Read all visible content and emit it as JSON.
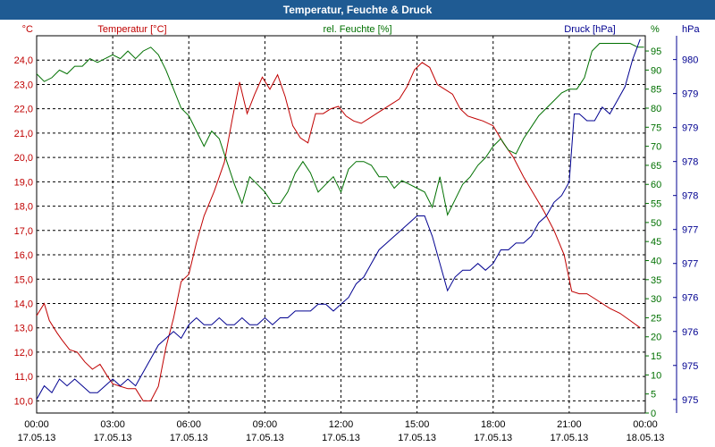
{
  "window": {
    "title": "Temperatur, Feuchte & Druck"
  },
  "chart_data": {
    "type": "line",
    "title": "Temperatur, Feuchte & Druck",
    "grid": true,
    "colors": {
      "temperature": "#c00000",
      "humidity": "#007000",
      "pressure": "#000090",
      "title_bar": "#1f5b93",
      "grid": "#000000"
    },
    "x_ticks": [
      {
        "hour": 0,
        "time": "00:00",
        "date": "17.05.13"
      },
      {
        "hour": 3,
        "time": "03:00",
        "date": "17.05.13"
      },
      {
        "hour": 6,
        "time": "06:00",
        "date": "17.05.13"
      },
      {
        "hour": 9,
        "time": "09:00",
        "date": "17.05.13"
      },
      {
        "hour": 12,
        "time": "12:00",
        "date": "17.05.13"
      },
      {
        "hour": 15,
        "time": "15:00",
        "date": "17.05.13"
      },
      {
        "hour": 18,
        "time": "18:00",
        "date": "17.05.13"
      },
      {
        "hour": 21,
        "time": "21:00",
        "date": "17.05.13"
      },
      {
        "hour": 24,
        "time": "00:00",
        "date": "18.05.13"
      }
    ],
    "xlim": [
      0,
      24
    ],
    "axes": {
      "temperature": {
        "label": "Temperatur [°C]",
        "unit": "°C",
        "ylim": [
          9.5,
          25.0
        ],
        "ticks": [
          10,
          11,
          12,
          13,
          14,
          15,
          16,
          17,
          18,
          19,
          20,
          21,
          22,
          23,
          24
        ],
        "tick_labels": [
          "10,0",
          "11,0",
          "12,0",
          "13,0",
          "14,0",
          "15,0",
          "16,0",
          "17,0",
          "18,0",
          "19,0",
          "20,0",
          "21,0",
          "22,0",
          "23,0",
          "24,0"
        ]
      },
      "humidity": {
        "label": "rel. Feuchte [%]",
        "unit": "%",
        "ylim": [
          0,
          99
        ],
        "ticks": [
          0,
          5,
          10,
          15,
          20,
          25,
          30,
          35,
          40,
          45,
          50,
          55,
          60,
          65,
          70,
          75,
          80,
          85,
          90,
          95
        ],
        "tick_labels": [
          "0",
          "5",
          "10",
          "15",
          "20",
          "25",
          "30",
          "35",
          "40",
          "45",
          "50",
          "55",
          "60",
          "65",
          "70",
          "75",
          "80",
          "85",
          "90",
          "95"
        ]
      },
      "pressure": {
        "label": "Druck [hPa]",
        "unit": "hPa",
        "ylim": [
          974.8,
          980.35
        ],
        "tick_values": [
          975.0,
          975.5,
          976.0,
          976.5,
          977.0,
          977.5,
          978.0,
          978.5,
          979.0,
          979.5,
          980.0
        ],
        "tick_labels": [
          "975",
          "975",
          "976",
          "976",
          "977",
          "977",
          "978",
          "978",
          "979",
          "979",
          "980"
        ]
      }
    },
    "series": [
      {
        "name": "Temperatur [°C]",
        "axis": "temperature",
        "x": [
          0,
          0.3,
          0.5,
          0.8,
          1.0,
          1.3,
          1.6,
          1.9,
          2.2,
          2.5,
          2.8,
          3.0,
          3.3,
          3.6,
          3.9,
          4.2,
          4.5,
          4.8,
          5.1,
          5.4,
          5.7,
          6.0,
          6.3,
          6.6,
          7.0,
          7.4,
          7.7,
          8.0,
          8.3,
          8.6,
          8.9,
          9.2,
          9.5,
          9.8,
          10.1,
          10.4,
          10.7,
          11.0,
          11.3,
          11.6,
          11.9,
          12.2,
          12.5,
          12.8,
          13.1,
          13.4,
          13.7,
          14.0,
          14.3,
          14.6,
          14.9,
          15.2,
          15.5,
          15.8,
          16.1,
          16.4,
          16.7,
          17.0,
          17.3,
          17.6,
          18.0,
          18.4,
          18.8,
          19.2,
          19.6,
          20.0,
          20.4,
          20.8,
          21.1,
          21.4,
          21.7,
          22.0,
          22.3,
          22.6,
          23.0,
          23.4,
          23.8
        ],
        "y": [
          13.5,
          14.0,
          13.3,
          12.8,
          12.5,
          12.1,
          12.0,
          11.6,
          11.3,
          11.5,
          11.0,
          10.7,
          10.6,
          10.5,
          10.5,
          10.0,
          10.0,
          10.6,
          12.2,
          13.4,
          14.9,
          15.2,
          16.5,
          17.6,
          18.6,
          19.8,
          21.5,
          23.1,
          21.8,
          22.6,
          23.3,
          22.8,
          23.4,
          22.5,
          21.3,
          20.8,
          20.6,
          21.8,
          21.8,
          22.0,
          22.1,
          21.7,
          21.5,
          21.4,
          21.6,
          21.8,
          22.0,
          22.2,
          22.4,
          22.9,
          23.6,
          23.9,
          23.7,
          23.0,
          22.8,
          22.6,
          22.0,
          21.7,
          21.6,
          21.5,
          21.3,
          20.6,
          20.0,
          19.2,
          18.5,
          17.8,
          17.0,
          16.0,
          14.5,
          14.4,
          14.4,
          14.2,
          14.0,
          13.8,
          13.6,
          13.3,
          13.0
        ]
      },
      {
        "name": "rel. Feuchte [%]",
        "axis": "humidity",
        "x": [
          0,
          0.3,
          0.6,
          0.9,
          1.2,
          1.5,
          1.8,
          2.1,
          2.4,
          2.7,
          3.0,
          3.3,
          3.6,
          3.9,
          4.2,
          4.5,
          4.8,
          5.1,
          5.4,
          5.7,
          6.0,
          6.3,
          6.6,
          6.9,
          7.2,
          7.5,
          7.8,
          8.1,
          8.4,
          8.7,
          9.0,
          9.3,
          9.6,
          9.9,
          10.2,
          10.5,
          10.8,
          11.1,
          11.4,
          11.7,
          12.0,
          12.3,
          12.6,
          12.9,
          13.2,
          13.5,
          13.8,
          14.1,
          14.4,
          14.7,
          15.0,
          15.3,
          15.6,
          15.9,
          16.2,
          16.5,
          16.8,
          17.1,
          17.4,
          17.7,
          18.0,
          18.3,
          18.6,
          18.9,
          19.2,
          19.5,
          19.8,
          20.1,
          20.4,
          20.7,
          21.0,
          21.3,
          21.6,
          21.9,
          22.2,
          22.5,
          22.8,
          23.1,
          23.4,
          23.7,
          23.95
        ],
        "y": [
          89,
          87,
          88,
          90,
          89,
          91,
          91,
          93,
          92,
          93,
          94,
          93,
          95,
          93,
          95,
          96,
          94,
          90,
          85,
          80,
          78,
          74,
          70,
          74,
          72,
          66,
          60,
          55,
          62,
          60,
          58,
          55,
          55,
          58,
          63,
          66,
          63,
          58,
          60,
          62,
          58,
          64,
          66,
          66,
          65,
          62,
          62,
          59,
          61,
          60,
          59,
          58,
          54,
          62,
          52,
          56,
          60,
          62,
          65,
          67,
          70,
          72,
          69,
          68,
          72,
          75,
          78,
          80,
          82,
          84,
          85,
          85,
          88,
          95,
          97,
          97,
          97,
          97,
          97,
          96,
          96
        ]
      },
      {
        "name": "Druck [hPa]",
        "axis": "pressure",
        "x": [
          0,
          0.3,
          0.6,
          0.9,
          1.2,
          1.5,
          1.8,
          2.1,
          2.4,
          2.7,
          3.0,
          3.3,
          3.6,
          3.9,
          4.2,
          4.5,
          4.8,
          5.1,
          5.4,
          5.7,
          6.0,
          6.3,
          6.6,
          6.9,
          7.2,
          7.5,
          7.8,
          8.1,
          8.4,
          8.7,
          9.0,
          9.3,
          9.6,
          9.9,
          10.2,
          10.5,
          10.8,
          11.1,
          11.4,
          11.7,
          12.0,
          12.3,
          12.6,
          12.9,
          13.2,
          13.5,
          13.8,
          14.1,
          14.4,
          14.7,
          15.0,
          15.3,
          15.6,
          15.9,
          16.2,
          16.5,
          16.8,
          17.1,
          17.4,
          17.7,
          18.0,
          18.3,
          18.6,
          18.9,
          19.2,
          19.5,
          19.8,
          20.1,
          20.4,
          20.7,
          21.0,
          21.2,
          21.4,
          21.7,
          22.0,
          22.3,
          22.6,
          22.9,
          23.2,
          23.5,
          23.8
        ],
        "y": [
          975.0,
          975.2,
          975.1,
          975.3,
          975.2,
          975.3,
          975.2,
          975.1,
          975.1,
          975.2,
          975.3,
          975.2,
          975.3,
          975.2,
          975.4,
          975.6,
          975.8,
          975.9,
          976.0,
          975.9,
          976.1,
          976.2,
          976.1,
          976.1,
          976.2,
          976.1,
          976.1,
          976.2,
          976.1,
          976.1,
          976.2,
          976.1,
          976.2,
          976.2,
          976.3,
          976.3,
          976.3,
          976.4,
          976.4,
          976.3,
          976.4,
          976.5,
          976.7,
          976.8,
          977.0,
          977.2,
          977.3,
          977.4,
          977.5,
          977.6,
          977.7,
          977.7,
          977.4,
          977.0,
          976.6,
          976.8,
          976.9,
          976.9,
          977.0,
          976.9,
          977.0,
          977.2,
          977.2,
          977.3,
          977.3,
          977.4,
          977.6,
          977.7,
          977.9,
          978.0,
          978.2,
          979.2,
          979.2,
          979.1,
          979.1,
          979.3,
          979.2,
          979.4,
          979.6,
          980.0,
          980.3
        ]
      }
    ]
  }
}
